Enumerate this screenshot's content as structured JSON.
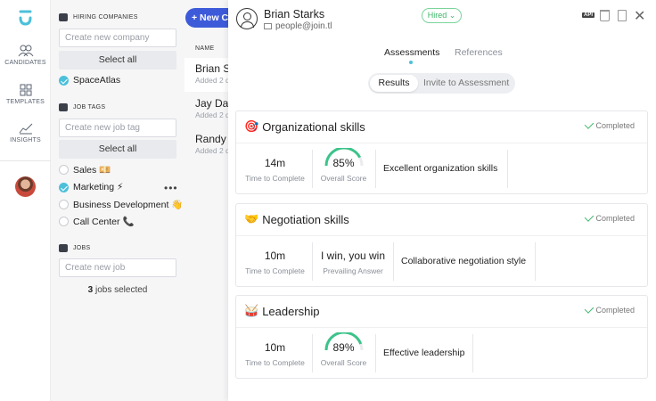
{
  "rail": {
    "items": [
      {
        "label": "CANDIDATES",
        "icon": "candidates-icon"
      },
      {
        "label": "TEMPLATES",
        "icon": "templates-icon"
      },
      {
        "label": "INSIGHTS",
        "icon": "insights-icon"
      }
    ]
  },
  "filters": {
    "companies": {
      "title": "HIRING COMPANIES",
      "placeholder": "Create new company",
      "select_all": "Select all",
      "items": [
        {
          "label": "SpaceAtlas",
          "checked": true
        }
      ]
    },
    "tags": {
      "title": "JOB TAGS",
      "placeholder": "Create new job tag",
      "select_all": "Select all",
      "items": [
        {
          "label": "Sales 💴",
          "checked": false
        },
        {
          "label": "Marketing ⚡",
          "checked": true
        },
        {
          "label": "Business Development 👋",
          "checked": false
        },
        {
          "label": "Call Center 📞",
          "checked": false
        }
      ],
      "more": "•••"
    },
    "jobs": {
      "title": "JOBS",
      "placeholder": "Create new job",
      "count": "3",
      "count_suffix": " jobs selected"
    }
  },
  "list": {
    "new_button": "+ New C",
    "column_header": "NAME",
    "candidates": [
      {
        "name": "Brian S",
        "sub": "Added 2 d",
        "active": true
      },
      {
        "name": "Jay Dav",
        "sub": "Added 2 d",
        "active": false
      },
      {
        "name": "Randy",
        "sub": "Added 2 d",
        "active": false
      }
    ]
  },
  "detail": {
    "name": "Brian Starks",
    "email": "people@join.tl",
    "status": "Hired",
    "api_label": "API",
    "tabs": {
      "assessments": "Assessments",
      "references": "References"
    },
    "segment": {
      "results": "Results",
      "invite": "Invite to Assessment"
    },
    "cards": [
      {
        "emoji": "🎯",
        "title": "Organizational skills",
        "status": "Completed",
        "time": "14m",
        "time_label": "Time to Complete",
        "score": "85%",
        "score_value": 0.85,
        "score_label": "Overall Score",
        "summary": "Excellent organization skills"
      },
      {
        "emoji": "🤝",
        "title": "Negotiation skills",
        "status": "Completed",
        "time": "10m",
        "time_label": "Time to Complete",
        "answer": "I win, you win",
        "answer_label": "Prevailing Answer",
        "summary": "Collaborative negotiation style"
      },
      {
        "emoji": "🥁",
        "title": "Leadership",
        "status": "Completed",
        "time": "10m",
        "time_label": "Time to Complete",
        "score": "89%",
        "score_value": 0.89,
        "score_label": "Overall Score",
        "summary": "Effective leadership"
      }
    ]
  },
  "colors": {
    "accent": "#4cc0da",
    "primary": "#3d5bd9",
    "success": "#3cb66a"
  }
}
